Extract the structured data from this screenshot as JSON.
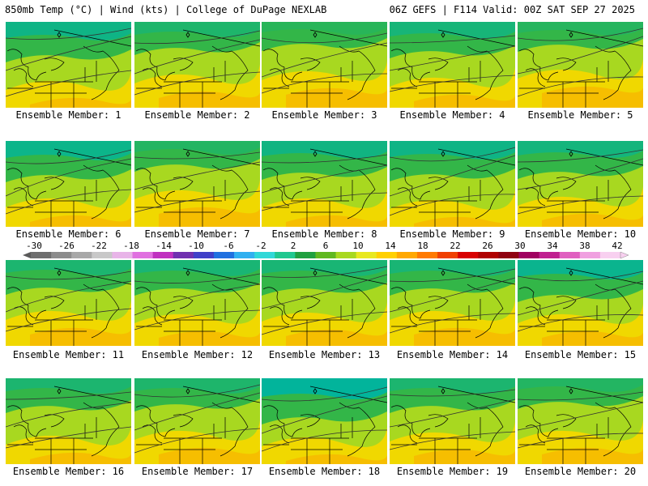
{
  "header": {
    "left": "850mb Temp (°C) | Wind (kts) | College of DuPage NEXLAB",
    "right": "06Z GEFS | F114 Valid: 00Z SAT SEP 27 2025"
  },
  "caption_prefix": "Ensemble Member: ",
  "members": [
    {
      "n": "1",
      "label": "Ensemble Member: 1",
      "cold": 0.7,
      "warm": 0.3
    },
    {
      "n": "2",
      "label": "Ensemble Member: 2",
      "cold": 0.4,
      "warm": 0.5
    },
    {
      "n": "3",
      "label": "Ensemble Member: 3",
      "cold": 0.2,
      "warm": 0.6
    },
    {
      "n": "4",
      "label": "Ensemble Member: 4",
      "cold": 0.55,
      "warm": 0.4
    },
    {
      "n": "5",
      "label": "Ensemble Member: 5",
      "cold": 0.25,
      "warm": 0.65
    },
    {
      "n": "6",
      "label": "Ensemble Member: 6",
      "cold": 0.75,
      "warm": 0.35
    },
    {
      "n": "7",
      "label": "Ensemble Member: 7",
      "cold": 0.3,
      "warm": 0.6
    },
    {
      "n": "8",
      "label": "Ensemble Member: 8",
      "cold": 0.65,
      "warm": 0.35
    },
    {
      "n": "9",
      "label": "Ensemble Member: 9",
      "cold": 0.7,
      "warm": 0.3
    },
    {
      "n": "10",
      "label": "Ensemble Member: 10",
      "cold": 0.6,
      "warm": 0.4
    },
    {
      "n": "11",
      "label": "Ensemble Member: 11",
      "cold": 0.45,
      "warm": 0.55
    },
    {
      "n": "12",
      "label": "Ensemble Member: 12",
      "cold": 0.5,
      "warm": 0.45
    },
    {
      "n": "13",
      "label": "Ensemble Member: 13",
      "cold": 0.5,
      "warm": 0.5
    },
    {
      "n": "14",
      "label": "Ensemble Member: 14",
      "cold": 0.5,
      "warm": 0.55
    },
    {
      "n": "15",
      "label": "Ensemble Member: 15",
      "cold": 0.8,
      "warm": 0.45
    },
    {
      "n": "16",
      "label": "Ensemble Member: 16",
      "cold": 0.45,
      "warm": 0.35
    },
    {
      "n": "17",
      "label": "Ensemble Member: 17",
      "cold": 0.4,
      "warm": 0.5
    },
    {
      "n": "18",
      "label": "Ensemble Member: 18",
      "cold": 0.95,
      "warm": 0.3
    },
    {
      "n": "19",
      "label": "Ensemble Member: 19",
      "cold": 0.45,
      "warm": 0.45
    },
    {
      "n": "20",
      "label": "Ensemble Member: 20",
      "cold": 0.3,
      "warm": 0.5
    }
  ],
  "colorbar": {
    "labels": [
      "-30",
      "-26",
      "-22",
      "-18",
      "-14",
      "-10",
      "-6",
      "-2",
      "2",
      "6",
      "10",
      "14",
      "18",
      "22",
      "26",
      "30",
      "34",
      "38",
      "42"
    ],
    "colors": [
      "#6e6e6e",
      "#8c8c8c",
      "#a8a8a8",
      "#c8c8c8",
      "#e8b4e8",
      "#e070e0",
      "#c030c0",
      "#7030b0",
      "#4040c8",
      "#2070e0",
      "#30b0f0",
      "#30d8d8",
      "#20c890",
      "#20a040",
      "#60b820",
      "#a8d820",
      "#e8e820",
      "#ffd000",
      "#ffa800",
      "#ff7a00",
      "#f04000",
      "#d80000",
      "#b00000",
      "#900010",
      "#a00060",
      "#c02090",
      "#e060c0",
      "#f0a0e0",
      "#f8d0f0"
    ]
  },
  "colors": {
    "cold_deep": "#00b4a0",
    "cold": "#1eb050",
    "mid": "#a8d820",
    "warm": "#f0d800",
    "hot": "#f8b400",
    "border": "#000000"
  }
}
